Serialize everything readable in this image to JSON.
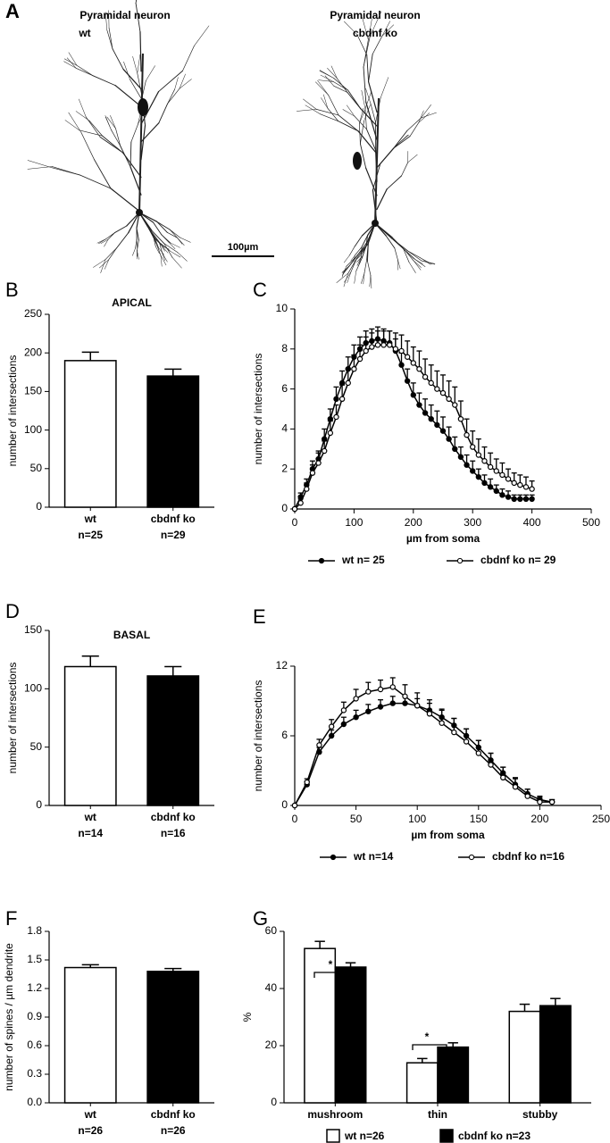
{
  "figure_a": {
    "panel": "A",
    "left_title": "Pyramidal neuron",
    "left_subtitle": "wt",
    "right_title": "Pyramidal neuron",
    "right_subtitle": "cbdnf ko",
    "scale_bar": "100µm"
  },
  "chart_data": [
    {
      "type": "bar",
      "panel": "B",
      "title": "APICAL",
      "ylabel": "number of intersections",
      "categories": [
        "wt",
        "cbdnf ko"
      ],
      "category_counts": [
        "n=25",
        "n=29"
      ],
      "values": [
        190,
        170
      ],
      "errors": [
        11,
        9
      ],
      "colors": [
        "#ffffff",
        "#000000"
      ],
      "ylim": [
        0,
        250
      ],
      "yticks": [
        0,
        50,
        100,
        150,
        200,
        250
      ]
    },
    {
      "type": "line",
      "panel": "C",
      "ylabel": "number of intersections",
      "xlabel": "µm from soma",
      "x": [
        0,
        10,
        20,
        30,
        40,
        50,
        60,
        70,
        80,
        90,
        100,
        110,
        120,
        130,
        140,
        150,
        160,
        170,
        180,
        190,
        200,
        210,
        220,
        230,
        240,
        250,
        260,
        270,
        280,
        290,
        300,
        310,
        320,
        330,
        340,
        350,
        360,
        370,
        380,
        390,
        400
      ],
      "series": [
        {
          "name": "wt n= 25",
          "color": "#000000",
          "marker": "filled",
          "values": [
            0,
            0.6,
            1.2,
            2.0,
            2.5,
            3.5,
            4.5,
            5.5,
            6.3,
            7.0,
            7.6,
            8.0,
            8.3,
            8.4,
            8.5,
            8.4,
            8.3,
            7.9,
            7.2,
            6.4,
            5.7,
            5.2,
            4.8,
            4.5,
            4.2,
            3.9,
            3.5,
            3.0,
            2.6,
            2.2,
            1.9,
            1.6,
            1.3,
            1.1,
            0.9,
            0.7,
            0.6,
            0.5,
            0.5,
            0.5,
            0.5
          ],
          "errors": [
            0,
            0.2,
            0.3,
            0.4,
            0.4,
            0.5,
            0.5,
            0.6,
            0.6,
            0.6,
            0.6,
            0.6,
            0.6,
            0.6,
            0.6,
            0.6,
            0.6,
            0.6,
            0.6,
            0.6,
            0.6,
            0.6,
            0.7,
            0.7,
            0.7,
            0.7,
            0.6,
            0.6,
            0.5,
            0.5,
            0.5,
            0.4,
            0.4,
            0.4,
            0.3,
            0.3,
            0.3,
            0.2,
            0.2,
            0.2,
            0.2
          ]
        },
        {
          "name": "cbdnf ko n= 29",
          "color": "#000000",
          "marker": "open",
          "values": [
            0,
            0.3,
            1.0,
            1.8,
            2.3,
            2.9,
            3.8,
            4.6,
            5.5,
            6.3,
            7.0,
            7.5,
            7.9,
            8.1,
            8.2,
            8.2,
            8.2,
            8.0,
            7.9,
            7.6,
            7.3,
            7.0,
            6.6,
            6.3,
            6.0,
            5.8,
            5.5,
            5.2,
            4.5,
            3.7,
            3.1,
            2.7,
            2.4,
            2.1,
            1.9,
            1.7,
            1.5,
            1.3,
            1.2,
            1.1,
            1.0
          ],
          "errors": [
            0,
            0.2,
            0.3,
            0.4,
            0.5,
            0.5,
            0.6,
            0.6,
            0.7,
            0.7,
            0.7,
            0.7,
            0.7,
            0.7,
            0.7,
            0.7,
            0.7,
            0.8,
            0.8,
            0.8,
            0.8,
            0.9,
            0.9,
            0.9,
            0.9,
            0.9,
            0.9,
            0.9,
            0.9,
            0.8,
            0.8,
            0.8,
            0.7,
            0.7,
            0.6,
            0.6,
            0.5,
            0.5,
            0.5,
            0.5,
            0.4
          ]
        }
      ],
      "annotations": [
        "*",
        "*",
        "*"
      ],
      "xlim": [
        0,
        500
      ],
      "xticks": [
        0,
        100,
        200,
        300,
        400,
        500
      ],
      "ylim": [
        0,
        10
      ],
      "yticks": [
        0,
        2,
        4,
        6,
        8,
        10
      ]
    },
    {
      "type": "bar",
      "panel": "D",
      "title": "BASAL",
      "ylabel": "number of intersections",
      "categories": [
        "wt",
        "cbdnf ko"
      ],
      "category_counts": [
        "n=14",
        "n=16"
      ],
      "values": [
        119,
        111
      ],
      "errors": [
        9,
        8
      ],
      "colors": [
        "#ffffff",
        "#000000"
      ],
      "ylim": [
        0,
        150
      ],
      "yticks": [
        0,
        50,
        100,
        150
      ]
    },
    {
      "type": "line",
      "panel": "E",
      "ylabel": "number of intersections",
      "xlabel": "µm from soma",
      "x": [
        0,
        10,
        20,
        30,
        40,
        50,
        60,
        70,
        80,
        90,
        100,
        110,
        120,
        130,
        140,
        150,
        160,
        170,
        180,
        190,
        200,
        210
      ],
      "series": [
        {
          "name": "wt n=14",
          "color": "#000000",
          "marker": "filled",
          "values": [
            0,
            1.8,
            4.6,
            6.0,
            7.0,
            7.6,
            8.1,
            8.5,
            8.8,
            8.8,
            8.6,
            8.2,
            7.6,
            6.9,
            6.0,
            5.0,
            3.9,
            2.8,
            1.8,
            1.0,
            0.5,
            0.3
          ],
          "errors": [
            0,
            0.3,
            0.4,
            0.5,
            0.6,
            0.6,
            0.6,
            0.6,
            0.6,
            0.6,
            0.6,
            0.6,
            0.6,
            0.6,
            0.6,
            0.6,
            0.6,
            0.5,
            0.5,
            0.4,
            0.3,
            0.2
          ]
        },
        {
          "name": "cbdnf ko n=16",
          "color": "#000000",
          "marker": "open",
          "values": [
            0,
            2.0,
            5.2,
            6.8,
            8.2,
            9.2,
            9.8,
            10.0,
            10.2,
            9.4,
            8.6,
            7.9,
            7.1,
            6.3,
            5.5,
            4.5,
            3.5,
            2.4,
            1.6,
            0.8,
            0.3,
            0.3
          ],
          "errors": [
            0,
            0.3,
            0.5,
            0.6,
            0.7,
            0.8,
            0.8,
            0.8,
            0.8,
            1.0,
            1.1,
            1.2,
            1.2,
            1.2,
            1.1,
            1.1,
            1.0,
            0.9,
            0.8,
            0.6,
            0.4,
            0.2
          ]
        }
      ],
      "xlim": [
        0,
        250
      ],
      "xticks": [
        0,
        50,
        100,
        150,
        200,
        250
      ],
      "ylim": [
        0,
        12
      ],
      "yticks": [
        0,
        6,
        12
      ]
    },
    {
      "type": "bar",
      "panel": "F",
      "ylabel": "number of spines / µm dendrite",
      "categories": [
        "wt",
        "cbdnf ko"
      ],
      "category_counts": [
        "n=26",
        "n=26"
      ],
      "values": [
        1.42,
        1.38
      ],
      "errors": [
        0.03,
        0.03
      ],
      "colors": [
        "#ffffff",
        "#000000"
      ],
      "ylim": [
        0,
        1.8
      ],
      "yticks": [
        {
          "value": 0,
          "label": "0.0"
        },
        0.3,
        0.6,
        0.9,
        1.2,
        1.5,
        1.8
      ]
    },
    {
      "type": "bar",
      "panel": "G",
      "ylabel": "%",
      "categories": [
        "mushroom",
        "thin",
        "stubby"
      ],
      "series": [
        {
          "name": "wt n=26",
          "color": "#ffffff",
          "values": [
            54,
            14,
            32
          ],
          "errors": [
            2.5,
            1.5,
            2.5
          ]
        },
        {
          "name": "cbdnf ko n=23",
          "color": "#000000",
          "values": [
            47.5,
            19.5,
            34
          ],
          "errors": [
            1.5,
            1.5,
            2.5
          ]
        }
      ],
      "annotations": [
        "*",
        "*"
      ],
      "ylim": [
        0,
        60
      ],
      "yticks": [
        0,
        20,
        40,
        60
      ]
    }
  ]
}
